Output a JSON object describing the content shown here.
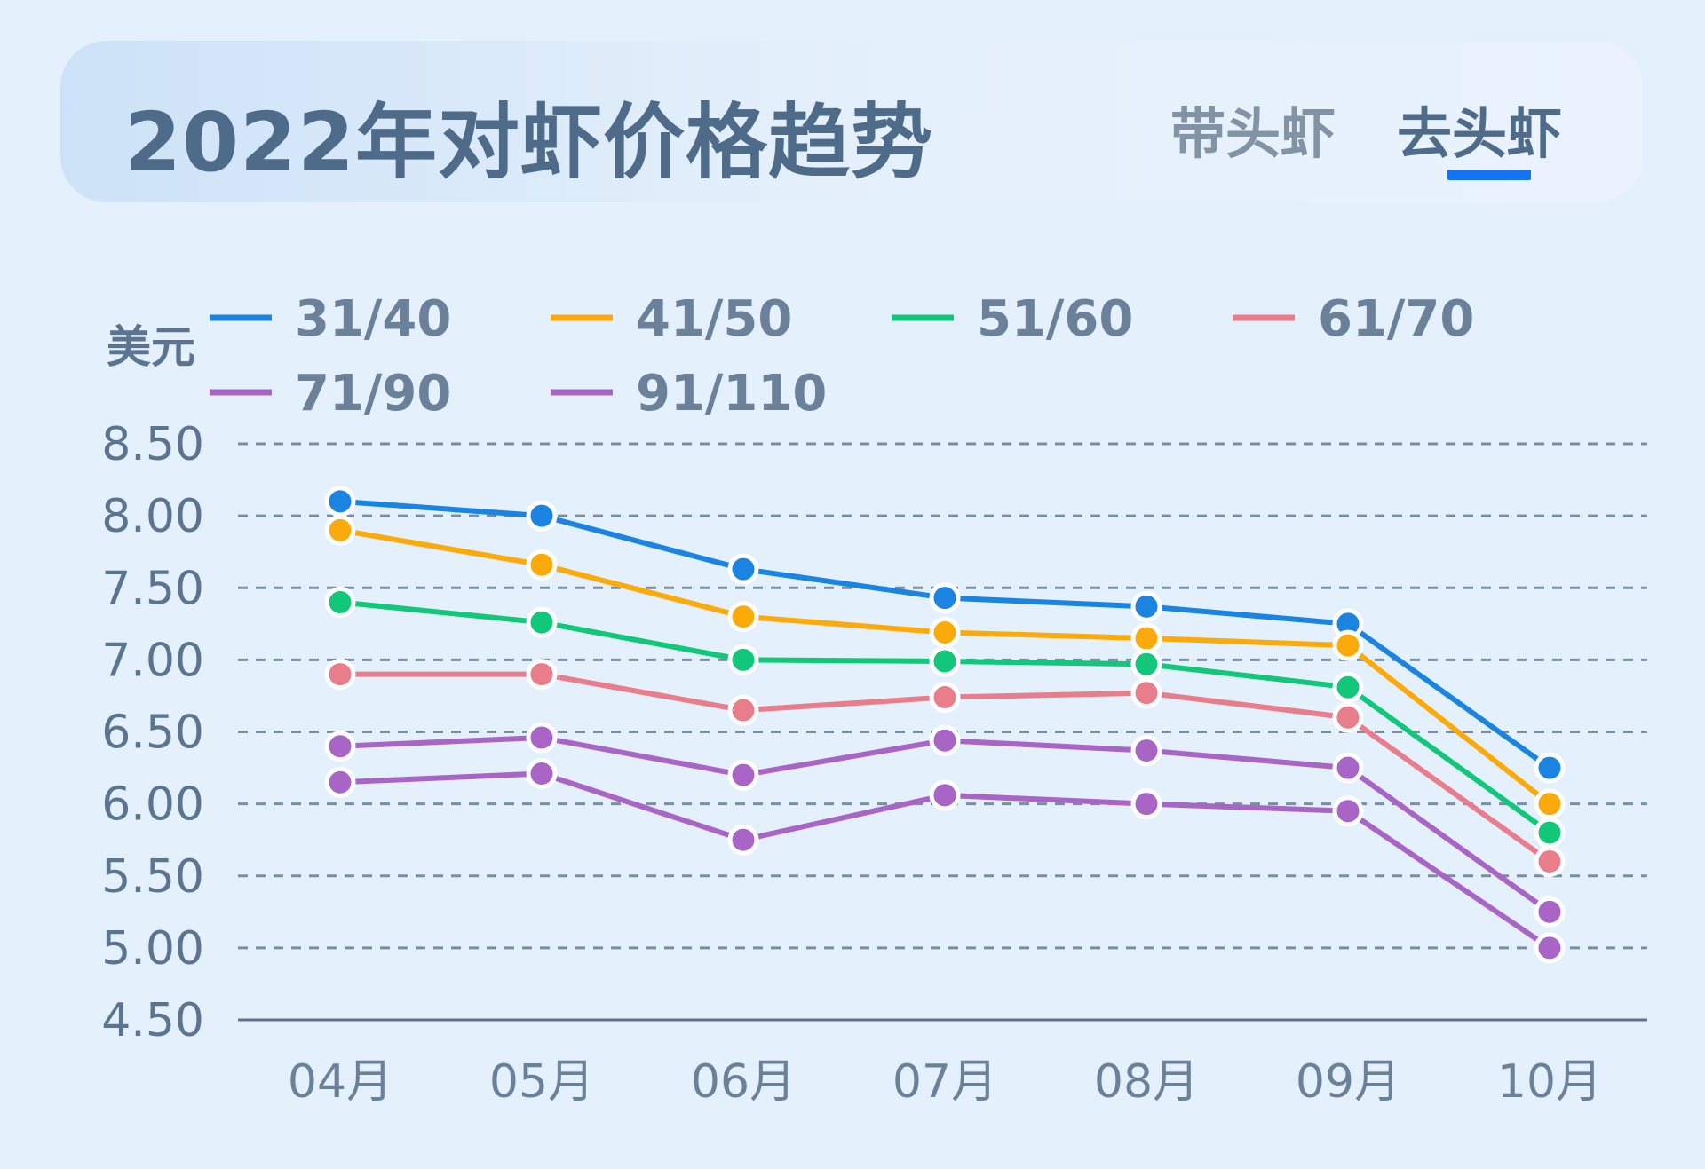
{
  "header": {
    "title": "2022年对虾价格趋势",
    "tabs": [
      {
        "label": "带头虾",
        "active": false
      },
      {
        "label": "去头虾",
        "active": true
      }
    ],
    "accent_color": "#1473f0"
  },
  "chart_data": {
    "type": "line",
    "title": "2022年对虾价格趋势",
    "ylabel": "美元",
    "xlabel": "",
    "categories": [
      "04月",
      "05月",
      "06月",
      "07月",
      "08月",
      "09月",
      "10月"
    ],
    "ylim": [
      4.5,
      8.5
    ],
    "yticks": [
      "4.50",
      "5.00",
      "5.50",
      "6.00",
      "6.50",
      "7.00",
      "7.50",
      "8.00",
      "8.50"
    ],
    "grid": "horizontal dashed",
    "legend_position": "top",
    "series": [
      {
        "name": "31/40",
        "color": "#1a84e0",
        "values": [
          8.1,
          8.0,
          7.63,
          7.43,
          7.37,
          7.25,
          6.25
        ]
      },
      {
        "name": "41/50",
        "color": "#fbaa0b",
        "values": [
          7.9,
          7.66,
          7.3,
          7.19,
          7.15,
          7.1,
          6.0
        ]
      },
      {
        "name": "51/60",
        "color": "#12c77a",
        "values": [
          7.4,
          7.26,
          7.0,
          6.99,
          6.97,
          6.81,
          5.8
        ]
      },
      {
        "name": "61/70",
        "color": "#e87d8b",
        "values": [
          6.9,
          6.9,
          6.65,
          6.74,
          6.77,
          6.6,
          5.6
        ]
      },
      {
        "name": "71/90",
        "color": "#a865c5",
        "values": [
          6.4,
          6.46,
          6.2,
          6.44,
          6.37,
          6.25,
          5.25
        ]
      },
      {
        "name": "91/110",
        "color": "#a865c5",
        "values": [
          6.15,
          6.21,
          5.75,
          6.06,
          6.0,
          5.95,
          5.0
        ]
      }
    ]
  }
}
